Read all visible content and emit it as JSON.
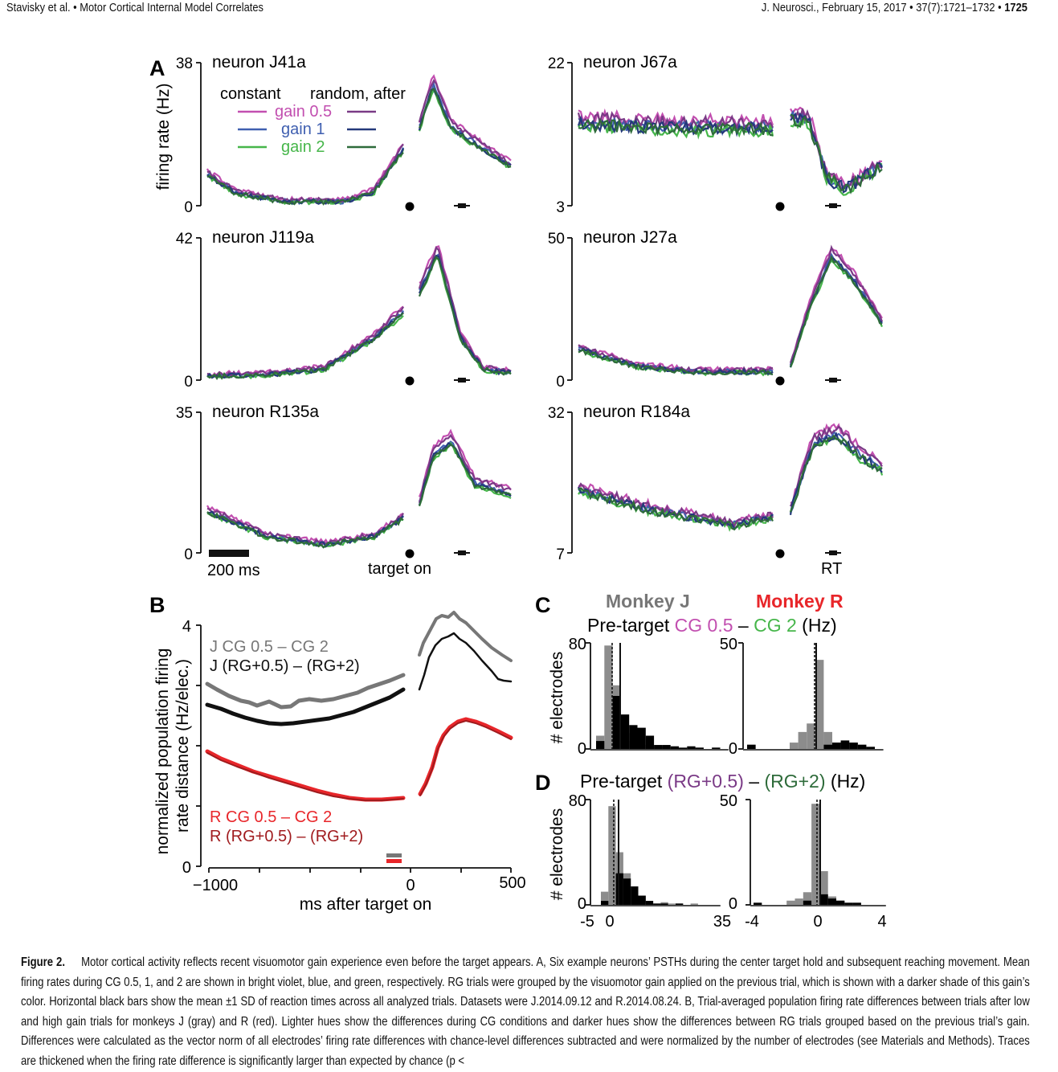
{
  "header": {
    "left": "Stavisky et al. • Motor Cortical Internal Model Correlates",
    "right_prefix": "J. Neurosci., February 15, 2017 • 37(7):1721–1732 • ",
    "right_page": "1725"
  },
  "colors": {
    "cg05": "#c24fb0",
    "cg1": "#3f5fb0",
    "cg2": "#46b64a",
    "rg05": "#7a3a86",
    "rg1": "#24397a",
    "rg2": "#2e6b3a",
    "monkey_j_light": "#777777",
    "monkey_j_dark": "#111111",
    "monkey_r_light": "#e8262a",
    "monkey_r_dark": "#a01b1e",
    "hist_gray": "#8c8c8c",
    "hist_black": "#000000"
  },
  "panel_a": {
    "label": "A",
    "ylabel": "firing rate (Hz)",
    "legend": {
      "constant": "constant",
      "random": "random, after",
      "gain05": "gain 0.5",
      "gain1": "gain 1",
      "gain2": "gain 2"
    },
    "scale_bar": "200 ms",
    "target_on": "target on",
    "rt": "RT",
    "neurons": [
      {
        "name": "neuron J41a",
        "ymax": "38",
        "ymin": "0"
      },
      {
        "name": "neuron J67a",
        "ymax": "22",
        "ymin": "3"
      },
      {
        "name": "neuron J119a",
        "ymax": "42",
        "ymin": "0"
      },
      {
        "name": "neuron J27a",
        "ymax": "50",
        "ymin": "0"
      },
      {
        "name": "neuron R135a",
        "ymax": "35",
        "ymin": "0"
      },
      {
        "name": "neuron R184a",
        "ymax": "32",
        "ymin": "7"
      }
    ]
  },
  "panel_b": {
    "label": "B",
    "ylabel1": "normalized population firing",
    "ylabel2": "rate distance (Hz/elec.)",
    "xlabel": "ms after target on",
    "yticks": [
      "4",
      "0"
    ],
    "xticks": [
      "−1000",
      "0",
      "500"
    ],
    "legend_j1": "J CG 0.5 – CG 2",
    "legend_j2": "J (RG+0.5) – (RG+2)",
    "legend_r1": "R CG 0.5 – CG 2",
    "legend_r2": "R (RG+0.5) – (RG+2)"
  },
  "panel_c": {
    "label": "C",
    "monkey_j": "Monkey J",
    "monkey_r": "Monkey R",
    "title_pre": "Pre-target ",
    "title_a": "CG 0.5",
    "title_dash": " – ",
    "title_b": "CG 2",
    "title_unit": " (Hz)",
    "ylabel": "# electrodes",
    "left_ymax": "80",
    "right_ymax": "50",
    "ymin": "0"
  },
  "panel_d": {
    "label": "D",
    "title_pre": "Pre-target ",
    "title_a": "(RG+0.5)",
    "title_dash": " – ",
    "title_b": "(RG+2)",
    "title_unit": " (Hz)",
    "ylabel": "# electrodes",
    "left_ymax": "80",
    "right_ymax": "50",
    "ymin": "0",
    "left_xticks": [
      "-5",
      "0",
      "35"
    ],
    "right_xticks": [
      "-4",
      "0",
      "4"
    ]
  },
  "caption": {
    "label": "Figure 2.",
    "text": "Motor cortical activity reflects recent visuomotor gain experience even before the target appears. A, Six example neurons’ PSTHs during the center target hold and subsequent reaching movement. Mean firing rates during CG 0.5, 1, and 2 are shown in bright violet, blue, and green, respectively. RG trials were grouped by the visuomotor gain applied on the previous trial, which is shown with a darker shade of this gain’s color. Horizontal black bars show the mean ±1 SD of reaction times across all analyzed trials. Datasets were J.2014.09.12 and R.2014.08.24. B, Trial-averaged population firing rate differences between trials after low and high gain trials for monkeys J (gray) and R (red). Lighter hues show the differences during CG conditions and darker hues show the differences between RG trials grouped based on the previous trial’s gain. Differences were calculated as the vector norm of all electrodes’ firing rate differences with chance-level differences subtracted and were normalized by the number of electrodes (see Materials and Methods). Traces are thickened when the firing rate difference is significantly larger than expected by chance (p <"
  }
}
